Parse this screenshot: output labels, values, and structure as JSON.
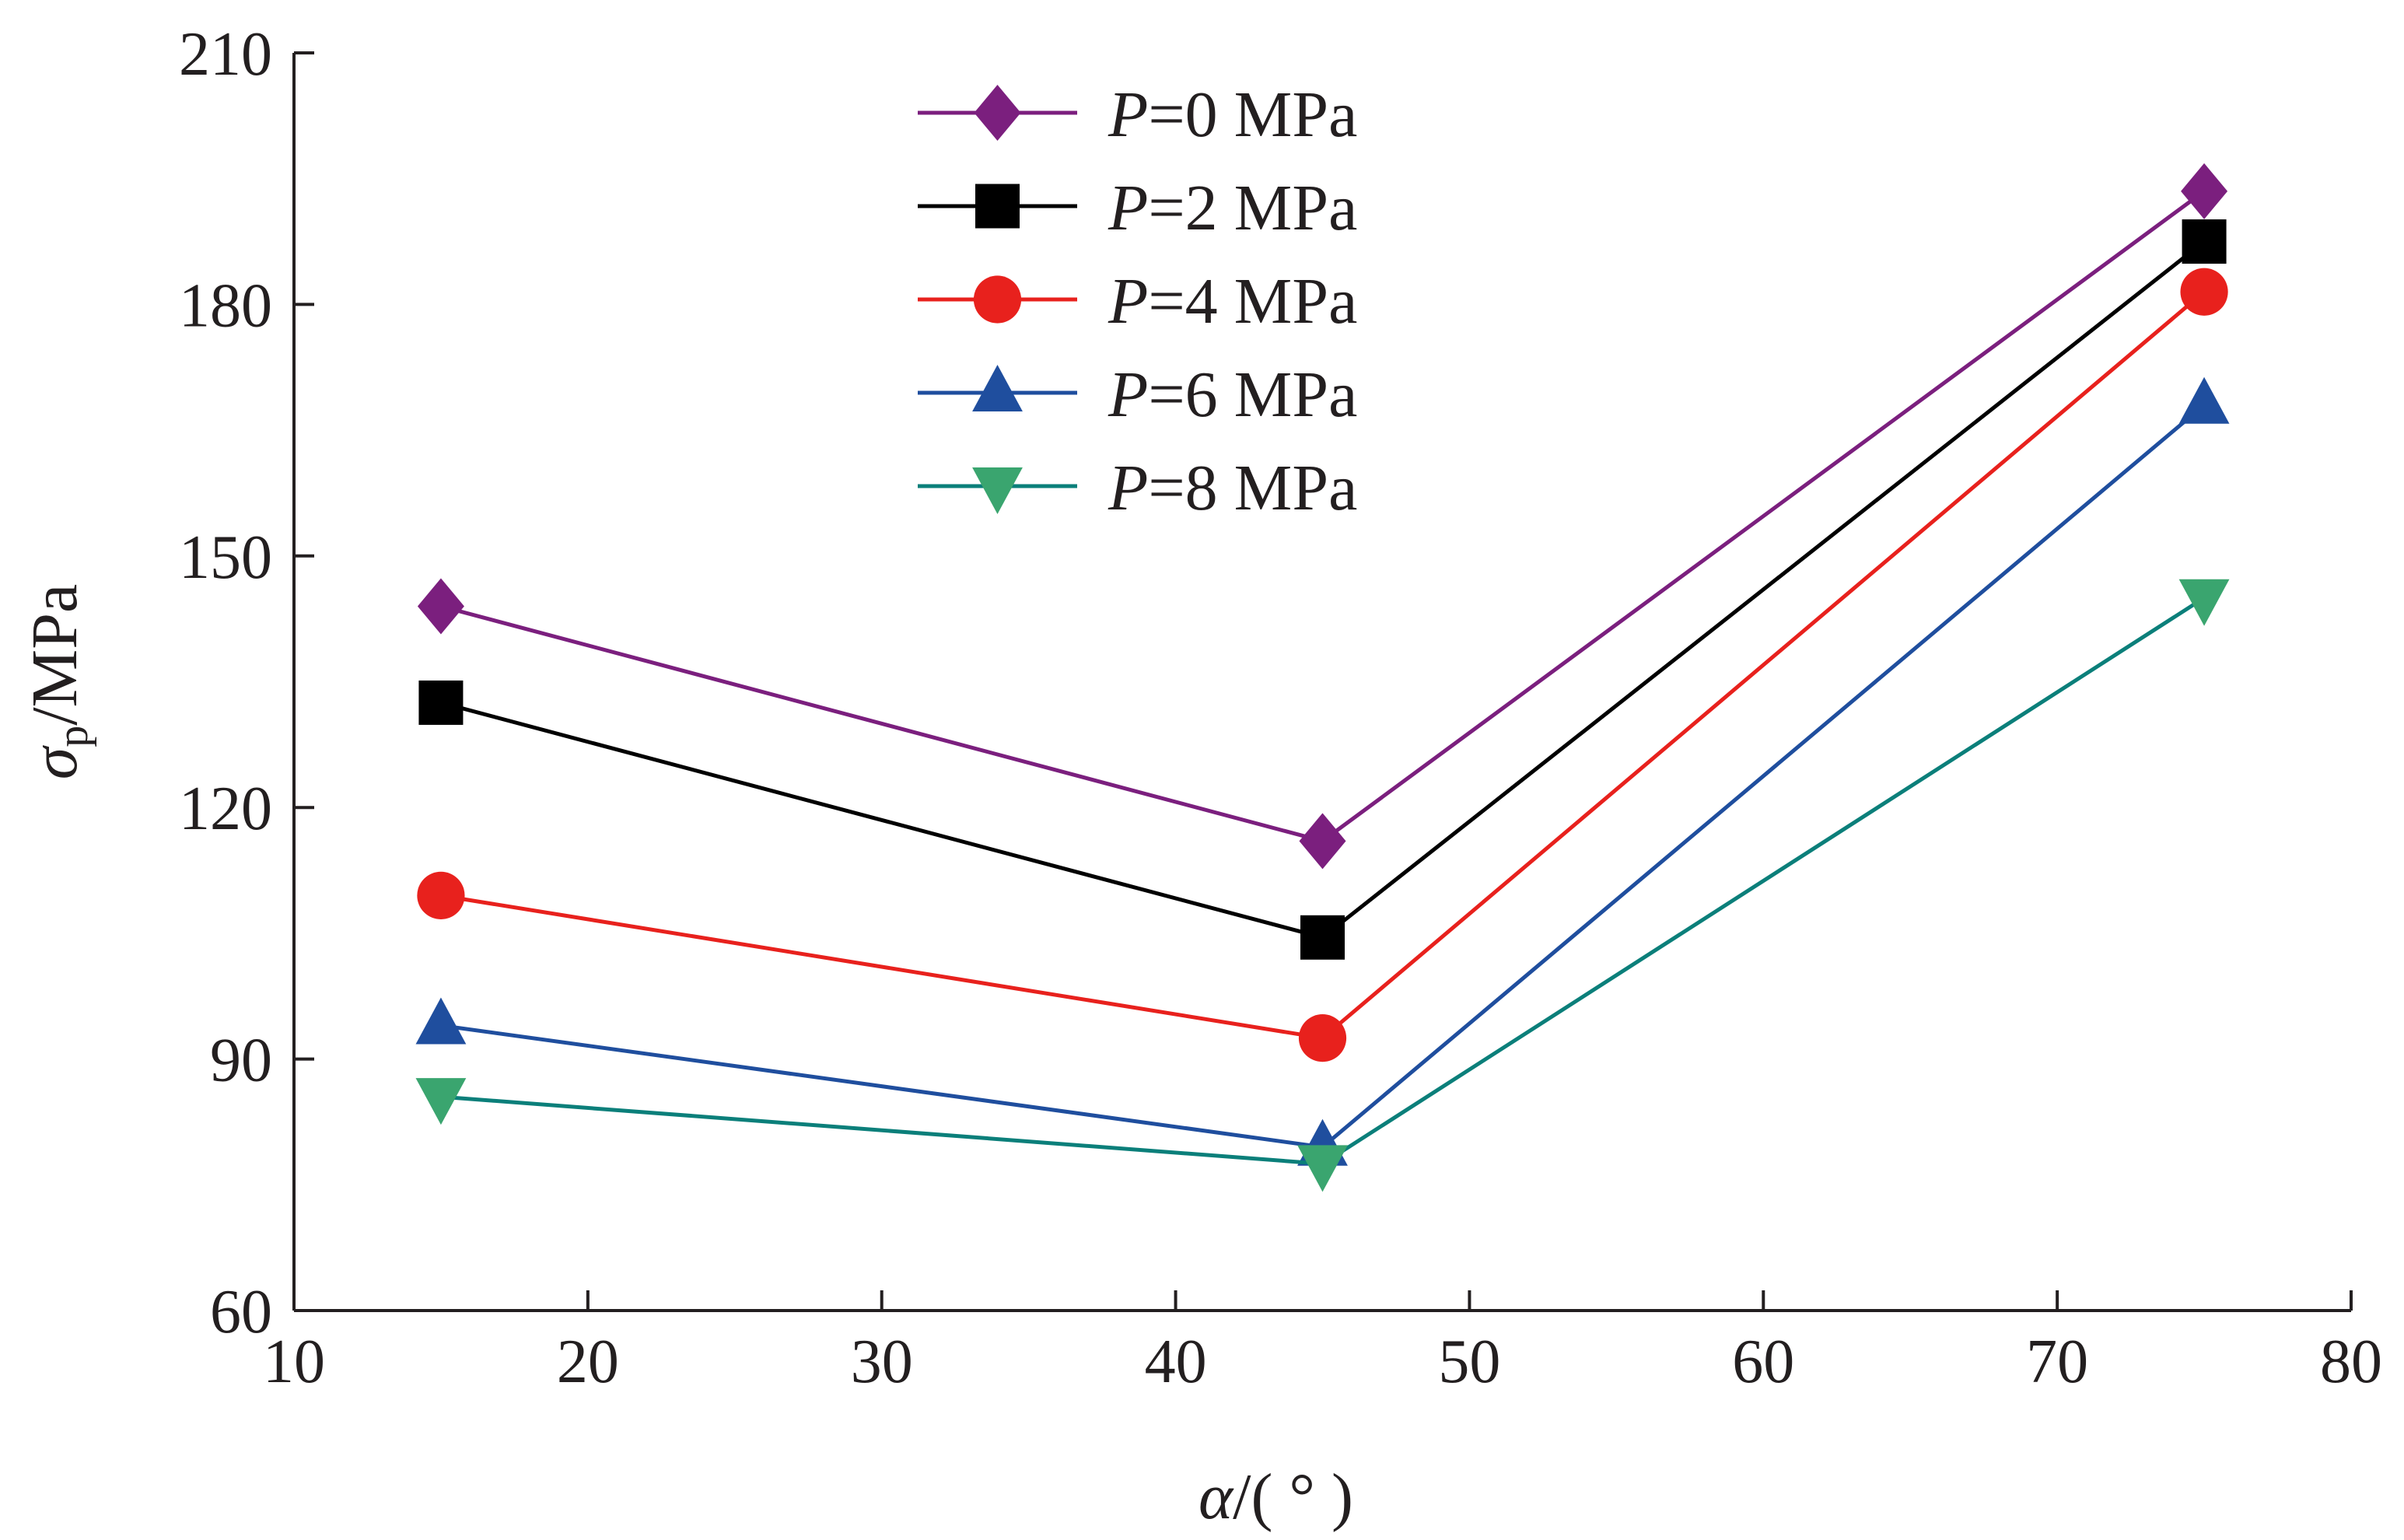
{
  "chart_data": {
    "type": "line",
    "x": [
      15,
      45,
      75
    ],
    "xlim": [
      10,
      80
    ],
    "ylim": [
      60,
      210
    ],
    "xticks": [
      10,
      20,
      30,
      40,
      50,
      60,
      70,
      80
    ],
    "yticks": [
      60,
      90,
      120,
      150,
      180,
      210
    ],
    "xlabel": {
      "symbol": "α",
      "rest": "/( ° )"
    },
    "ylabel": {
      "symbol": "σ",
      "sub": "p",
      "rest": "/MPa"
    },
    "legend_position": "top-center",
    "grid": false,
    "series": [
      {
        "name": "P=0 MPa",
        "name_symbol": "P",
        "name_rest": "=0 MPa",
        "marker": "diamond",
        "color": "#7b1f7e",
        "values": [
          144,
          116,
          193.5
        ]
      },
      {
        "name": "P=2 MPa",
        "name_symbol": "P",
        "name_rest": "=2 MPa",
        "marker": "square",
        "color": "#000000",
        "values": [
          132.5,
          104.5,
          187.5
        ]
      },
      {
        "name": "P=4 MPa",
        "name_symbol": "P",
        "name_rest": "=4 MPa",
        "marker": "circle",
        "color": "#e8211d",
        "values": [
          109.5,
          92.5,
          181.5
        ]
      },
      {
        "name": "P=6 MPa",
        "name_symbol": "P",
        "name_rest": "=6 MPa",
        "marker": "triangle-up",
        "color": "#1f4e9e",
        "values": [
          94,
          79.5,
          168
        ]
      },
      {
        "name": "P=8 MPa",
        "name_symbol": "P",
        "name_rest": "=8 MPa",
        "marker": "triangle-down",
        "color": "#3aa56f",
        "line_color": "#0b7f7a",
        "values": [
          85.5,
          77.5,
          145
        ]
      }
    ]
  }
}
